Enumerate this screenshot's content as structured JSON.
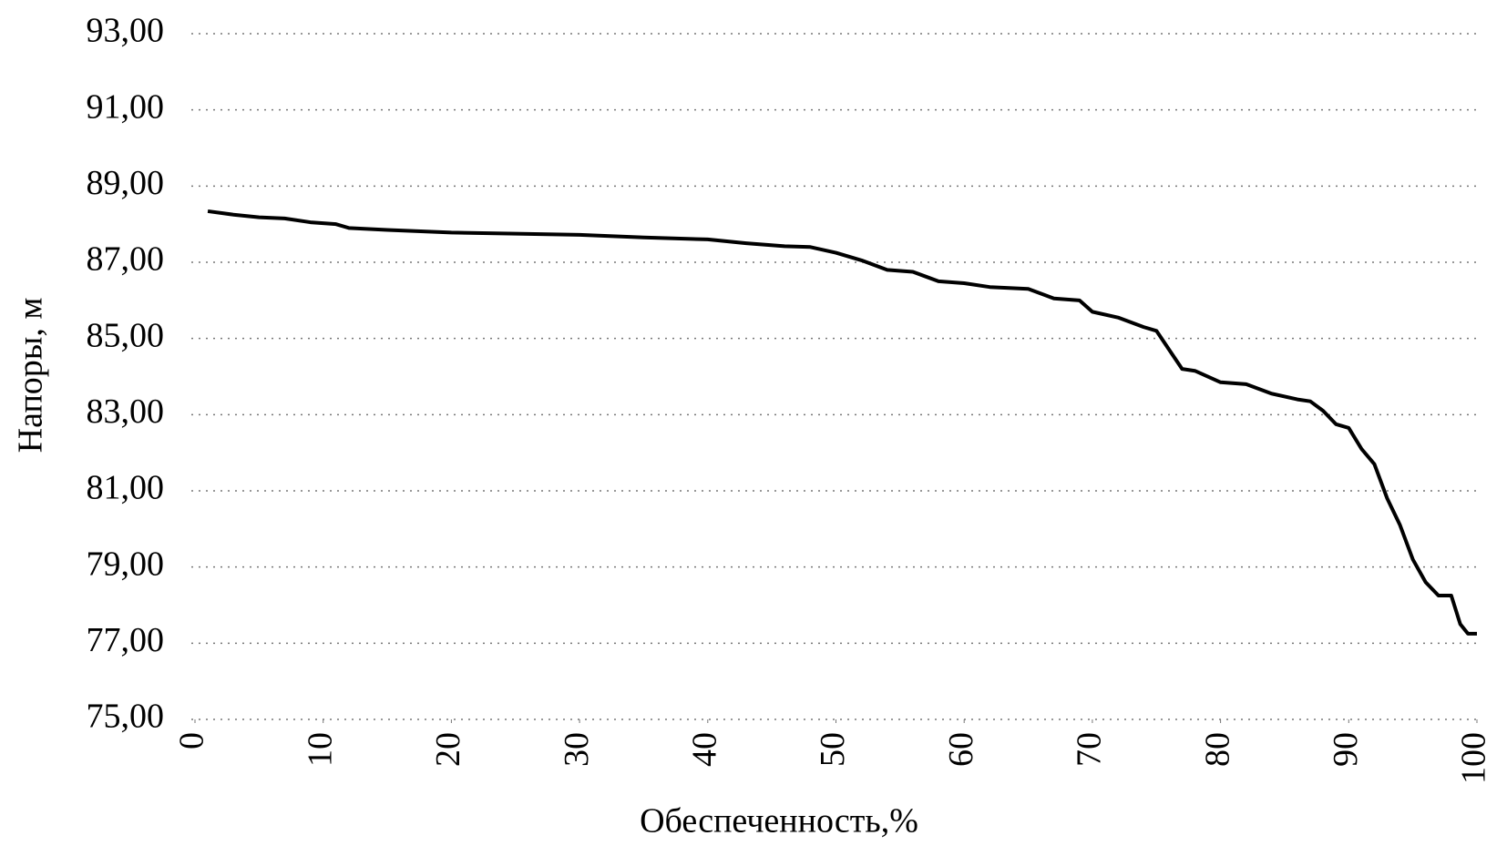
{
  "chart_data": {
    "type": "line",
    "x_label": "Обеспеченность,%",
    "y_label": "Напоры, м",
    "xlim": [
      0,
      100
    ],
    "xticks": [
      0,
      10,
      20,
      30,
      40,
      50,
      60,
      70,
      80,
      90,
      100
    ],
    "ylim": [
      75,
      93
    ],
    "yticks": [
      {
        "value": 75,
        "label": "75,00"
      },
      {
        "value": 77,
        "label": "77,00"
      },
      {
        "value": 79,
        "label": "79,00"
      },
      {
        "value": 81,
        "label": "81,00"
      },
      {
        "value": 83,
        "label": "83,00"
      },
      {
        "value": 85,
        "label": "85,00"
      },
      {
        "value": 87,
        "label": "87,00"
      },
      {
        "value": 89,
        "label": "89,00"
      },
      {
        "value": 91,
        "label": "91,00"
      },
      {
        "value": 93,
        "label": "93,00"
      }
    ],
    "grid": true,
    "x": [
      1,
      3,
      5,
      7,
      9,
      11,
      12,
      15,
      20,
      25,
      30,
      35,
      40,
      43,
      46,
      48,
      50,
      52,
      54,
      56,
      58,
      60,
      62,
      65,
      67,
      69,
      70,
      72,
      74,
      75,
      76,
      77,
      78,
      80,
      82,
      84,
      86,
      87,
      88,
      89,
      90,
      91,
      92,
      93,
      94,
      95,
      96,
      97,
      98,
      98.7,
      99.3,
      100
    ],
    "series": [
      {
        "color": "#000000",
        "values": [
          88.34,
          88.25,
          88.18,
          88.15,
          88.05,
          88.0,
          87.9,
          87.85,
          87.78,
          87.75,
          87.72,
          87.65,
          87.6,
          87.5,
          87.42,
          87.4,
          87.25,
          87.05,
          86.8,
          86.75,
          86.5,
          86.45,
          86.35,
          86.3,
          86.05,
          86.0,
          85.7,
          85.55,
          85.3,
          85.2,
          84.7,
          84.2,
          84.15,
          83.85,
          83.8,
          83.55,
          83.4,
          83.35,
          83.1,
          82.75,
          82.65,
          82.1,
          81.7,
          80.8,
          80.1,
          79.2,
          78.6,
          78.25,
          78.25,
          77.5,
          77.25,
          77.25
        ]
      }
    ]
  }
}
